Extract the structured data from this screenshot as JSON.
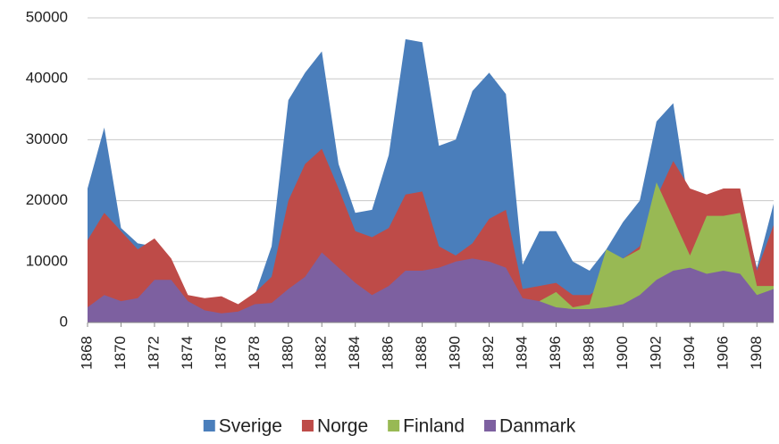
{
  "chart_data": {
    "type": "area",
    "x": [
      1868,
      1869,
      1870,
      1871,
      1872,
      1873,
      1874,
      1875,
      1876,
      1877,
      1878,
      1879,
      1880,
      1881,
      1882,
      1883,
      1884,
      1885,
      1886,
      1887,
      1888,
      1889,
      1890,
      1891,
      1892,
      1893,
      1894,
      1895,
      1896,
      1897,
      1898,
      1899,
      1900,
      1901,
      1902,
      1903,
      1904,
      1905,
      1906,
      1907,
      1908,
      1909
    ],
    "xlim": [
      1868,
      1909
    ],
    "xticks": [
      1868,
      1870,
      1872,
      1874,
      1876,
      1878,
      1880,
      1882,
      1884,
      1886,
      1888,
      1890,
      1892,
      1894,
      1896,
      1898,
      1900,
      1902,
      1904,
      1906,
      1908
    ],
    "ylim": [
      0,
      50000
    ],
    "yticks": [
      0,
      10000,
      20000,
      30000,
      40000,
      50000
    ],
    "grid": true,
    "legend": "bottom",
    "series": [
      {
        "name": "Sverige",
        "color": "#4a7ebb",
        "values": [
          22000,
          32000,
          15500,
          13000,
          12500,
          9500,
          3500,
          3000,
          3000,
          2500,
          4500,
          12500,
          36500,
          41000,
          44500,
          26000,
          18000,
          18500,
          27500,
          46500,
          46000,
          29000,
          30000,
          38000,
          41000,
          37500,
          9500,
          15000,
          15000,
          10000,
          8500,
          12000,
          16500,
          20000,
          33000,
          36000,
          18000,
          20000,
          19000,
          20000,
          9000,
          19500
        ]
      },
      {
        "name": "Norge",
        "color": "#be4b48",
        "values": [
          13500,
          18000,
          15000,
          12000,
          13800,
          10500,
          4500,
          4000,
          4300,
          3000,
          4900,
          7500,
          20000,
          26000,
          28500,
          22000,
          15000,
          14000,
          15500,
          21000,
          21500,
          12500,
          11000,
          13000,
          17000,
          18500,
          5500,
          6000,
          6500,
          4500,
          4500,
          6500,
          10500,
          12500,
          20500,
          26500,
          22000,
          21000,
          22000,
          22000,
          8500,
          16000
        ]
      },
      {
        "name": "Finland",
        "color": "#98b954",
        "values": [
          null,
          null,
          null,
          null,
          null,
          null,
          null,
          null,
          null,
          null,
          null,
          null,
          null,
          null,
          null,
          null,
          null,
          null,
          null,
          null,
          null,
          null,
          null,
          null,
          null,
          null,
          null,
          3500,
          5000,
          2500,
          3000,
          12000,
          10500,
          12000,
          23000,
          17000,
          11000,
          17500,
          17500,
          18000,
          6000,
          6000
        ]
      },
      {
        "name": "Danmark",
        "color": "#7d60a0",
        "values": [
          2500,
          4500,
          3500,
          4000,
          7000,
          7000,
          3500,
          2000,
          1500,
          1800,
          3000,
          3200,
          5500,
          7500,
          11500,
          9000,
          6500,
          4500,
          6000,
          8500,
          8500,
          9000,
          10000,
          10500,
          10000,
          9000,
          4000,
          3500,
          2500,
          2200,
          2200,
          2500,
          3000,
          4500,
          7000,
          8500,
          9000,
          8000,
          8500,
          8000,
          4500,
          5500
        ]
      }
    ]
  }
}
